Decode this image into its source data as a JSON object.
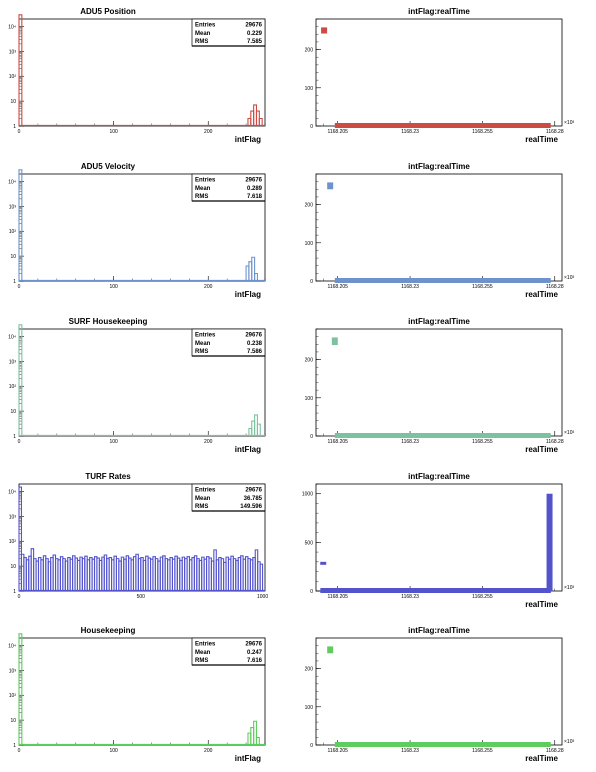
{
  "chart_data": [
    {
      "type": "histogram",
      "title": "ADU5 Position",
      "xlabel": "intFlag",
      "color": "#cc4b44",
      "xlim": [
        0,
        260
      ],
      "log_y": true,
      "ylim": [
        1,
        20000
      ],
      "xticks": [
        0,
        100,
        200
      ],
      "xtick_labels": [
        "0",
        "100",
        "200"
      ],
      "yticks": [
        1,
        10,
        100,
        1000,
        10000
      ],
      "ytick_labels": [
        "1",
        "10",
        "10²",
        "10³",
        "10⁴"
      ],
      "stats": {
        "entries_label": "Entries",
        "entries": "29676",
        "mean_label": "Mean",
        "mean": "0.229",
        "rms_label": "RMS",
        "rms": "7.585"
      },
      "bins": [
        [
          0,
          3,
          29400
        ],
        [
          242,
          245,
          2
        ],
        [
          245,
          248,
          4
        ],
        [
          248,
          251,
          7
        ],
        [
          251,
          254,
          4
        ],
        [
          254,
          257,
          2
        ]
      ]
    },
    {
      "type": "scatter",
      "title": "intFlag:realTime",
      "xlabel": "realTime",
      "color": "#cc4b44",
      "xlim": [
        1168.1975,
        1168.2825
      ],
      "ylim": [
        0,
        280
      ],
      "xticks": [
        1168.205,
        1168.23,
        1168.255,
        1168.28
      ],
      "xtick_labels": [
        "1168.205",
        "1168.23",
        "1168.255",
        "1168.28"
      ],
      "yticks": [
        0,
        100,
        200
      ],
      "ytick_labels": [
        "0",
        "100",
        "200"
      ],
      "x_multiplier": "×10³",
      "baseline": {
        "y": 0,
        "x_start": 1168.204,
        "x_end": 1168.2786
      },
      "clusters": [
        {
          "x": 1168.2003,
          "y": [
            242,
            258
          ]
        }
      ]
    },
    {
      "type": "histogram",
      "title": "ADU5 Velocity",
      "xlabel": "intFlag",
      "color": "#6e93cc",
      "xlim": [
        0,
        260
      ],
      "log_y": true,
      "ylim": [
        1,
        20000
      ],
      "xticks": [
        0,
        100,
        200
      ],
      "xtick_labels": [
        "0",
        "100",
        "200"
      ],
      "yticks": [
        1,
        10,
        100,
        1000,
        10000
      ],
      "ytick_labels": [
        "1",
        "10",
        "10²",
        "10³",
        "10⁴"
      ],
      "stats": {
        "entries_label": "Entries",
        "entries": "29676",
        "mean_label": "Mean",
        "mean": "0.289",
        "rms_label": "RMS",
        "rms": "7.618"
      },
      "bins": [
        [
          0,
          3,
          29400
        ],
        [
          240,
          243,
          4
        ],
        [
          243,
          246,
          6
        ],
        [
          246,
          249,
          9
        ],
        [
          249,
          252,
          2
        ]
      ]
    },
    {
      "type": "scatter",
      "title": "intFlag:realTime",
      "xlabel": "realTime",
      "color": "#6e93cc",
      "xlim": [
        1168.1975,
        1168.2825
      ],
      "ylim": [
        0,
        280
      ],
      "xticks": [
        1168.205,
        1168.23,
        1168.255,
        1168.28
      ],
      "xtick_labels": [
        "1168.205",
        "1168.23",
        "1168.255",
        "1168.28"
      ],
      "yticks": [
        0,
        100,
        200
      ],
      "ytick_labels": [
        "0",
        "100",
        "200"
      ],
      "x_multiplier": "×10³",
      "baseline": {
        "y": 0,
        "x_start": 1168.204,
        "x_end": 1168.2786
      },
      "clusters": [
        {
          "x": 1168.2024,
          "y": [
            240,
            258
          ]
        }
      ]
    },
    {
      "type": "histogram",
      "title": "SURF Housekeeping",
      "xlabel": "intFlag",
      "color": "#7dc2a0",
      "xlim": [
        0,
        260
      ],
      "log_y": true,
      "ylim": [
        1,
        20000
      ],
      "xticks": [
        0,
        100,
        200
      ],
      "xtick_labels": [
        "0",
        "100",
        "200"
      ],
      "yticks": [
        1,
        10,
        100,
        1000,
        10000
      ],
      "ytick_labels": [
        "1",
        "10",
        "10²",
        "10³",
        "10⁴"
      ],
      "stats": {
        "entries_label": "Entries",
        "entries": "29676",
        "mean_label": "Mean",
        "mean": "0.238",
        "rms_label": "RMS",
        "rms": "7.586"
      },
      "bins": [
        [
          0,
          3,
          29400
        ],
        [
          243,
          246,
          2
        ],
        [
          246,
          249,
          4
        ],
        [
          249,
          252,
          7
        ],
        [
          252,
          255,
          3
        ]
      ]
    },
    {
      "type": "scatter",
      "title": "intFlag:realTime",
      "xlabel": "realTime",
      "color": "#7dc2a0",
      "xlim": [
        1168.1975,
        1168.2825
      ],
      "ylim": [
        0,
        280
      ],
      "xticks": [
        1168.205,
        1168.23,
        1168.255,
        1168.28
      ],
      "xtick_labels": [
        "1168.205",
        "1168.23",
        "1168.255",
        "1168.28"
      ],
      "yticks": [
        0,
        100,
        200
      ],
      "ytick_labels": [
        "0",
        "100",
        "200"
      ],
      "x_multiplier": "×10³",
      "baseline": {
        "y": 0,
        "x_start": 1168.204,
        "x_end": 1168.2786
      },
      "clusters": [
        {
          "x": 1168.204,
          "y": [
            238,
            258
          ]
        }
      ]
    },
    {
      "type": "histogram",
      "title": "TURF Rates",
      "xlabel": "",
      "color": "#5353cc",
      "xlim": [
        0,
        1010
      ],
      "log_y": true,
      "ylim": [
        1,
        20000
      ],
      "xticks": [
        0,
        500,
        1000
      ],
      "xtick_labels": [
        "0",
        "500",
        "1000"
      ],
      "yticks": [
        1,
        10,
        100,
        1000,
        10000
      ],
      "ytick_labels": [
        "1",
        "10",
        "10²",
        "10³",
        "10⁴"
      ],
      "stats": {
        "entries_label": "Entries",
        "entries": "29676",
        "mean_label": "Mean",
        "mean": "36.785",
        "rms_label": "RMS",
        "rms": "149.596"
      },
      "bins": [
        [
          0,
          10,
          15000
        ],
        [
          10,
          20,
          30
        ],
        [
          20,
          30,
          22
        ],
        [
          30,
          40,
          18
        ],
        [
          40,
          50,
          25
        ],
        [
          50,
          60,
          50
        ],
        [
          60,
          70,
          20
        ],
        [
          70,
          80,
          16
        ],
        [
          80,
          90,
          22
        ],
        [
          90,
          100,
          18
        ],
        [
          100,
          110,
          26
        ],
        [
          110,
          120,
          20
        ],
        [
          120,
          130,
          15
        ],
        [
          130,
          140,
          22
        ],
        [
          140,
          150,
          28
        ],
        [
          150,
          160,
          20
        ],
        [
          160,
          170,
          18
        ],
        [
          170,
          180,
          24
        ],
        [
          180,
          190,
          20
        ],
        [
          190,
          200,
          16
        ],
        [
          200,
          210,
          22
        ],
        [
          210,
          220,
          19
        ],
        [
          220,
          230,
          26
        ],
        [
          230,
          240,
          21
        ],
        [
          240,
          250,
          17
        ],
        [
          250,
          260,
          23
        ],
        [
          260,
          270,
          20
        ],
        [
          270,
          280,
          25
        ],
        [
          280,
          290,
          18
        ],
        [
          290,
          300,
          22
        ],
        [
          300,
          310,
          19
        ],
        [
          310,
          320,
          24
        ],
        [
          320,
          330,
          21
        ],
        [
          330,
          340,
          17
        ],
        [
          340,
          350,
          23
        ],
        [
          350,
          360,
          28
        ],
        [
          360,
          370,
          20
        ],
        [
          370,
          380,
          22
        ],
        [
          380,
          390,
          18
        ],
        [
          390,
          400,
          25
        ],
        [
          400,
          410,
          20
        ],
        [
          410,
          420,
          16
        ],
        [
          420,
          430,
          23
        ],
        [
          430,
          440,
          19
        ],
        [
          440,
          450,
          26
        ],
        [
          450,
          460,
          21
        ],
        [
          460,
          470,
          18
        ],
        [
          470,
          480,
          24
        ],
        [
          480,
          490,
          30
        ],
        [
          490,
          500,
          20
        ],
        [
          500,
          510,
          22
        ],
        [
          510,
          520,
          17
        ],
        [
          520,
          530,
          25
        ],
        [
          530,
          540,
          21
        ],
        [
          540,
          550,
          19
        ],
        [
          550,
          560,
          24
        ],
        [
          560,
          570,
          20
        ],
        [
          570,
          580,
          16
        ],
        [
          580,
          590,
          23
        ],
        [
          590,
          600,
          26
        ],
        [
          600,
          610,
          20
        ],
        [
          610,
          620,
          18
        ],
        [
          620,
          630,
          22
        ],
        [
          630,
          640,
          19
        ],
        [
          640,
          650,
          25
        ],
        [
          650,
          660,
          21
        ],
        [
          660,
          670,
          17
        ],
        [
          670,
          680,
          23
        ],
        [
          680,
          690,
          20
        ],
        [
          690,
          700,
          24
        ],
        [
          700,
          710,
          18
        ],
        [
          710,
          720,
          22
        ],
        [
          720,
          730,
          26
        ],
        [
          730,
          740,
          20
        ],
        [
          740,
          750,
          17
        ],
        [
          750,
          760,
          23
        ],
        [
          760,
          770,
          19
        ],
        [
          770,
          780,
          24
        ],
        [
          780,
          790,
          21
        ],
        [
          790,
          800,
          16
        ],
        [
          800,
          810,
          45
        ],
        [
          810,
          820,
          18
        ],
        [
          820,
          830,
          22
        ],
        [
          830,
          840,
          20
        ],
        [
          840,
          850,
          14
        ],
        [
          850,
          860,
          23
        ],
        [
          860,
          870,
          19
        ],
        [
          870,
          880,
          25
        ],
        [
          880,
          890,
          20
        ],
        [
          890,
          900,
          17
        ],
        [
          900,
          910,
          22
        ],
        [
          910,
          920,
          26
        ],
        [
          920,
          930,
          19
        ],
        [
          930,
          940,
          24
        ],
        [
          940,
          950,
          20
        ],
        [
          950,
          960,
          18
        ],
        [
          960,
          970,
          22
        ],
        [
          970,
          980,
          45
        ],
        [
          980,
          990,
          15
        ],
        [
          990,
          1000,
          12
        ]
      ]
    },
    {
      "type": "scatter",
      "title": "intFlag:realTime",
      "xlabel": "realTime",
      "color": "#5353cc",
      "xlim": [
        1168.1975,
        1168.2825
      ],
      "ylim": [
        0,
        1100
      ],
      "xticks": [
        1168.205,
        1168.23,
        1168.255
      ],
      "xtick_labels": [
        "1168.205",
        "1168.23",
        "1168.255"
      ],
      "yticks": [
        0,
        500,
        1000
      ],
      "ytick_labels": [
        "0",
        "500",
        "1000"
      ],
      "x_multiplier": "×10³",
      "baseline": {
        "y": 0,
        "x_start": 1168.199,
        "x_end": 1168.2786
      },
      "band": {
        "y": [
          0,
          30
        ],
        "x_start": 1168.204,
        "x_end": 1168.2786
      },
      "clusters": [
        {
          "x": 1168.2,
          "y": [
            270,
            300
          ]
        }
      ],
      "vertical": {
        "x": 1168.2782,
        "y": [
          0,
          1000
        ]
      }
    },
    {
      "type": "histogram",
      "title": "Housekeeping",
      "xlabel": "intFlag",
      "color": "#5fcc5f",
      "xlim": [
        0,
        260
      ],
      "log_y": true,
      "ylim": [
        1,
        20000
      ],
      "xticks": [
        0,
        100,
        200
      ],
      "xtick_labels": [
        "0",
        "100",
        "200"
      ],
      "yticks": [
        1,
        10,
        100,
        1000,
        10000
      ],
      "ytick_labels": [
        "1",
        "10",
        "10²",
        "10³",
        "10⁴"
      ],
      "stats": {
        "entries_label": "Entries",
        "entries": "29676",
        "mean_label": "Mean",
        "mean": "0.247",
        "rms_label": "RMS",
        "rms": "7.616"
      },
      "bins": [
        [
          0,
          3,
          29400
        ],
        [
          242,
          245,
          3
        ],
        [
          245,
          248,
          5
        ],
        [
          248,
          251,
          9
        ],
        [
          251,
          254,
          2
        ]
      ]
    },
    {
      "type": "scatter",
      "title": "intFlag:realTime",
      "xlabel": "realTime",
      "color": "#5fcc5f",
      "xlim": [
        1168.1975,
        1168.2825
      ],
      "ylim": [
        0,
        280
      ],
      "xticks": [
        1168.205,
        1168.23,
        1168.255,
        1168.28
      ],
      "xtick_labels": [
        "1168.205",
        "1168.23",
        "1168.255",
        "1168.28"
      ],
      "yticks": [
        0,
        100,
        200
      ],
      "ytick_labels": [
        "0",
        "100",
        "200"
      ],
      "x_multiplier": "×10³",
      "baseline": {
        "y": 0,
        "x_start": 1168.204,
        "x_end": 1168.2786
      },
      "clusters": [
        {
          "x": 1168.2024,
          "y": [
            240,
            258
          ]
        }
      ]
    }
  ]
}
